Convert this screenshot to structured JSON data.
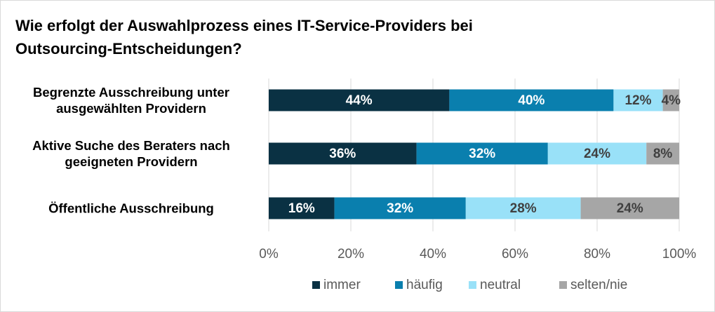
{
  "chart_data": {
    "type": "stacked-bar-horizontal",
    "title": "Wie erfolgt der Auswahlprozess eines IT-Service-Providers bei Outsourcing-Entscheidungen?",
    "categories": [
      "Begrenzte Ausschreibung unter ausgewählten Providern",
      "Aktive Suche des Beraters nach geeigneten Providern",
      "Öffentliche Ausschreibung"
    ],
    "series": [
      {
        "name": "immer",
        "color": "#0a3143",
        "label_color": "#ffffff",
        "values": [
          44,
          36,
          16
        ],
        "value_labels": [
          "44%",
          "36%",
          "16%"
        ]
      },
      {
        "name": "häufig",
        "color": "#0a7fae",
        "label_color": "#ffffff",
        "values": [
          40,
          32,
          32
        ],
        "value_labels": [
          "40%",
          "32%",
          "32%"
        ]
      },
      {
        "name": "neutral",
        "color": "#99e1f8",
        "label_color": "#404040",
        "values": [
          12,
          24,
          28
        ],
        "value_labels": [
          "12%",
          "24%",
          "28%"
        ]
      },
      {
        "name": "selten/nie",
        "color": "#a6a6a6",
        "label_color": "#404040",
        "values": [
          4,
          8,
          24
        ],
        "value_labels": [
          "4%",
          "8%",
          "24%"
        ]
      }
    ],
    "xlim": [
      0,
      100
    ],
    "xticks": [
      {
        "value": 0,
        "label": "0%"
      },
      {
        "value": 20,
        "label": "20%"
      },
      {
        "value": 40,
        "label": "40%"
      },
      {
        "value": 60,
        "label": "60%"
      },
      {
        "value": 80,
        "label": "80%"
      },
      {
        "value": 100,
        "label": "100%"
      }
    ],
    "grid": true,
    "legend": "bottom"
  }
}
